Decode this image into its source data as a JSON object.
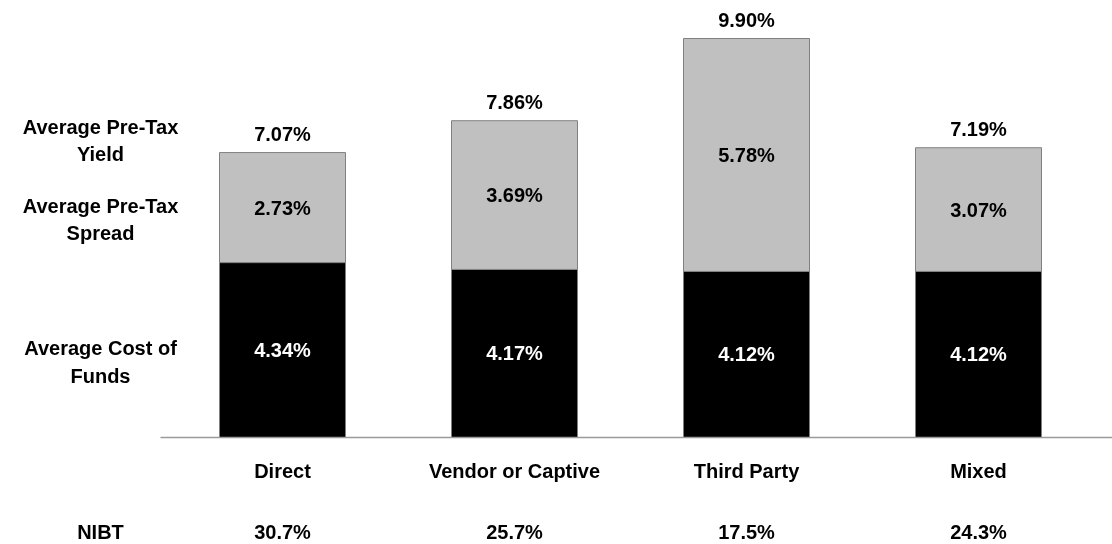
{
  "chart_data": {
    "type": "bar",
    "stacked": true,
    "grid": false,
    "categories": [
      "Direct",
      "Vendor or Captive",
      "Third Party",
      "Mixed"
    ],
    "series": [
      {
        "name": "Average Cost of Funds",
        "color": "#000000",
        "values": [
          4.34,
          4.17,
          4.12,
          4.12
        ],
        "value_labels": [
          "4.34%",
          "4.17%",
          "4.12%",
          "4.12%"
        ]
      },
      {
        "name": "Average Pre-Tax Spread",
        "color": "#c0c0c0",
        "values": [
          2.73,
          3.69,
          5.78,
          3.07
        ],
        "value_labels": [
          "2.73%",
          "3.69%",
          "5.78%",
          "3.07%"
        ]
      }
    ],
    "totals": [
      "7.07%",
      "7.86%",
      "9.90%",
      "7.19%"
    ],
    "annotations": [
      "Average Pre-Tax Yield",
      "NIBT",
      "30.7%",
      "25.7%",
      "17.5%",
      "24.3%"
    ]
  }
}
